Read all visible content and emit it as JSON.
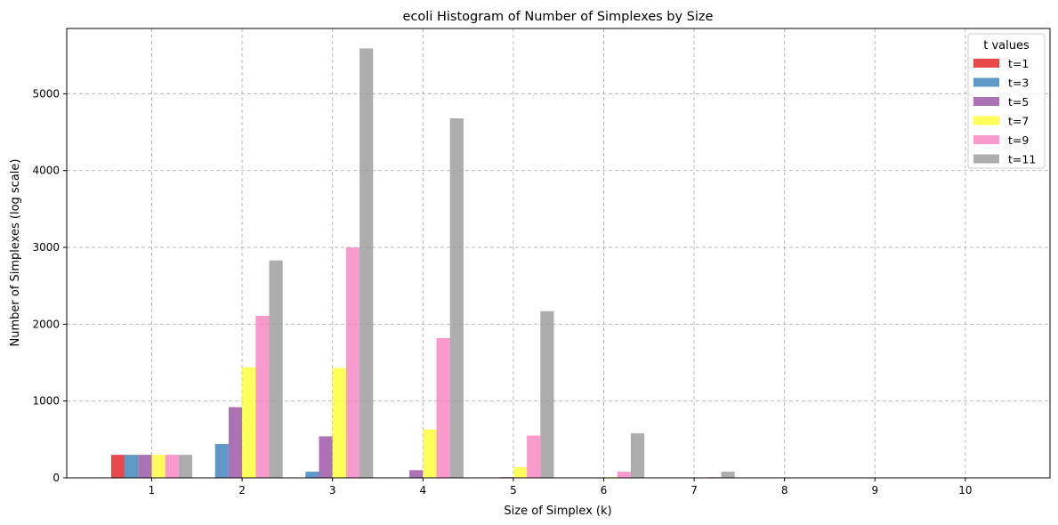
{
  "chart_data": {
    "type": "bar",
    "title": "ecoli Histogram of Number of Simplexes by Size",
    "xlabel": "Size of Simplex (k)",
    "ylabel": "Number of Simplexes (log scale)",
    "categories": [
      "1",
      "2",
      "3",
      "4",
      "5",
      "6",
      "7",
      "8",
      "9",
      "10"
    ],
    "ylim": [
      0,
      5850
    ],
    "yticks": [
      0,
      1000,
      2000,
      3000,
      4000,
      5000
    ],
    "grid": true,
    "legend_title": "t values",
    "legend_position": "top-right",
    "series": [
      {
        "name": "t=1",
        "color": "#e41a1c",
        "values": [
          300,
          0,
          0,
          0,
          0,
          0,
          0,
          0,
          0,
          0
        ]
      },
      {
        "name": "t=3",
        "color": "#377eb8",
        "values": [
          300,
          440,
          80,
          0,
          0,
          0,
          0,
          0,
          0,
          0
        ]
      },
      {
        "name": "t=5",
        "color": "#984ea3",
        "values": [
          300,
          920,
          540,
          100,
          10,
          0,
          0,
          5,
          0,
          0
        ]
      },
      {
        "name": "t=7",
        "color": "#ffff33",
        "values": [
          300,
          1440,
          1430,
          630,
          140,
          10,
          0,
          0,
          0,
          0
        ]
      },
      {
        "name": "t=9",
        "color": "#f781bf",
        "values": [
          300,
          2110,
          3000,
          1820,
          550,
          80,
          10,
          0,
          0,
          0
        ]
      },
      {
        "name": "t=11",
        "color": "#999999",
        "values": [
          300,
          2830,
          5590,
          4680,
          2170,
          580,
          80,
          0,
          0,
          0
        ]
      }
    ]
  }
}
